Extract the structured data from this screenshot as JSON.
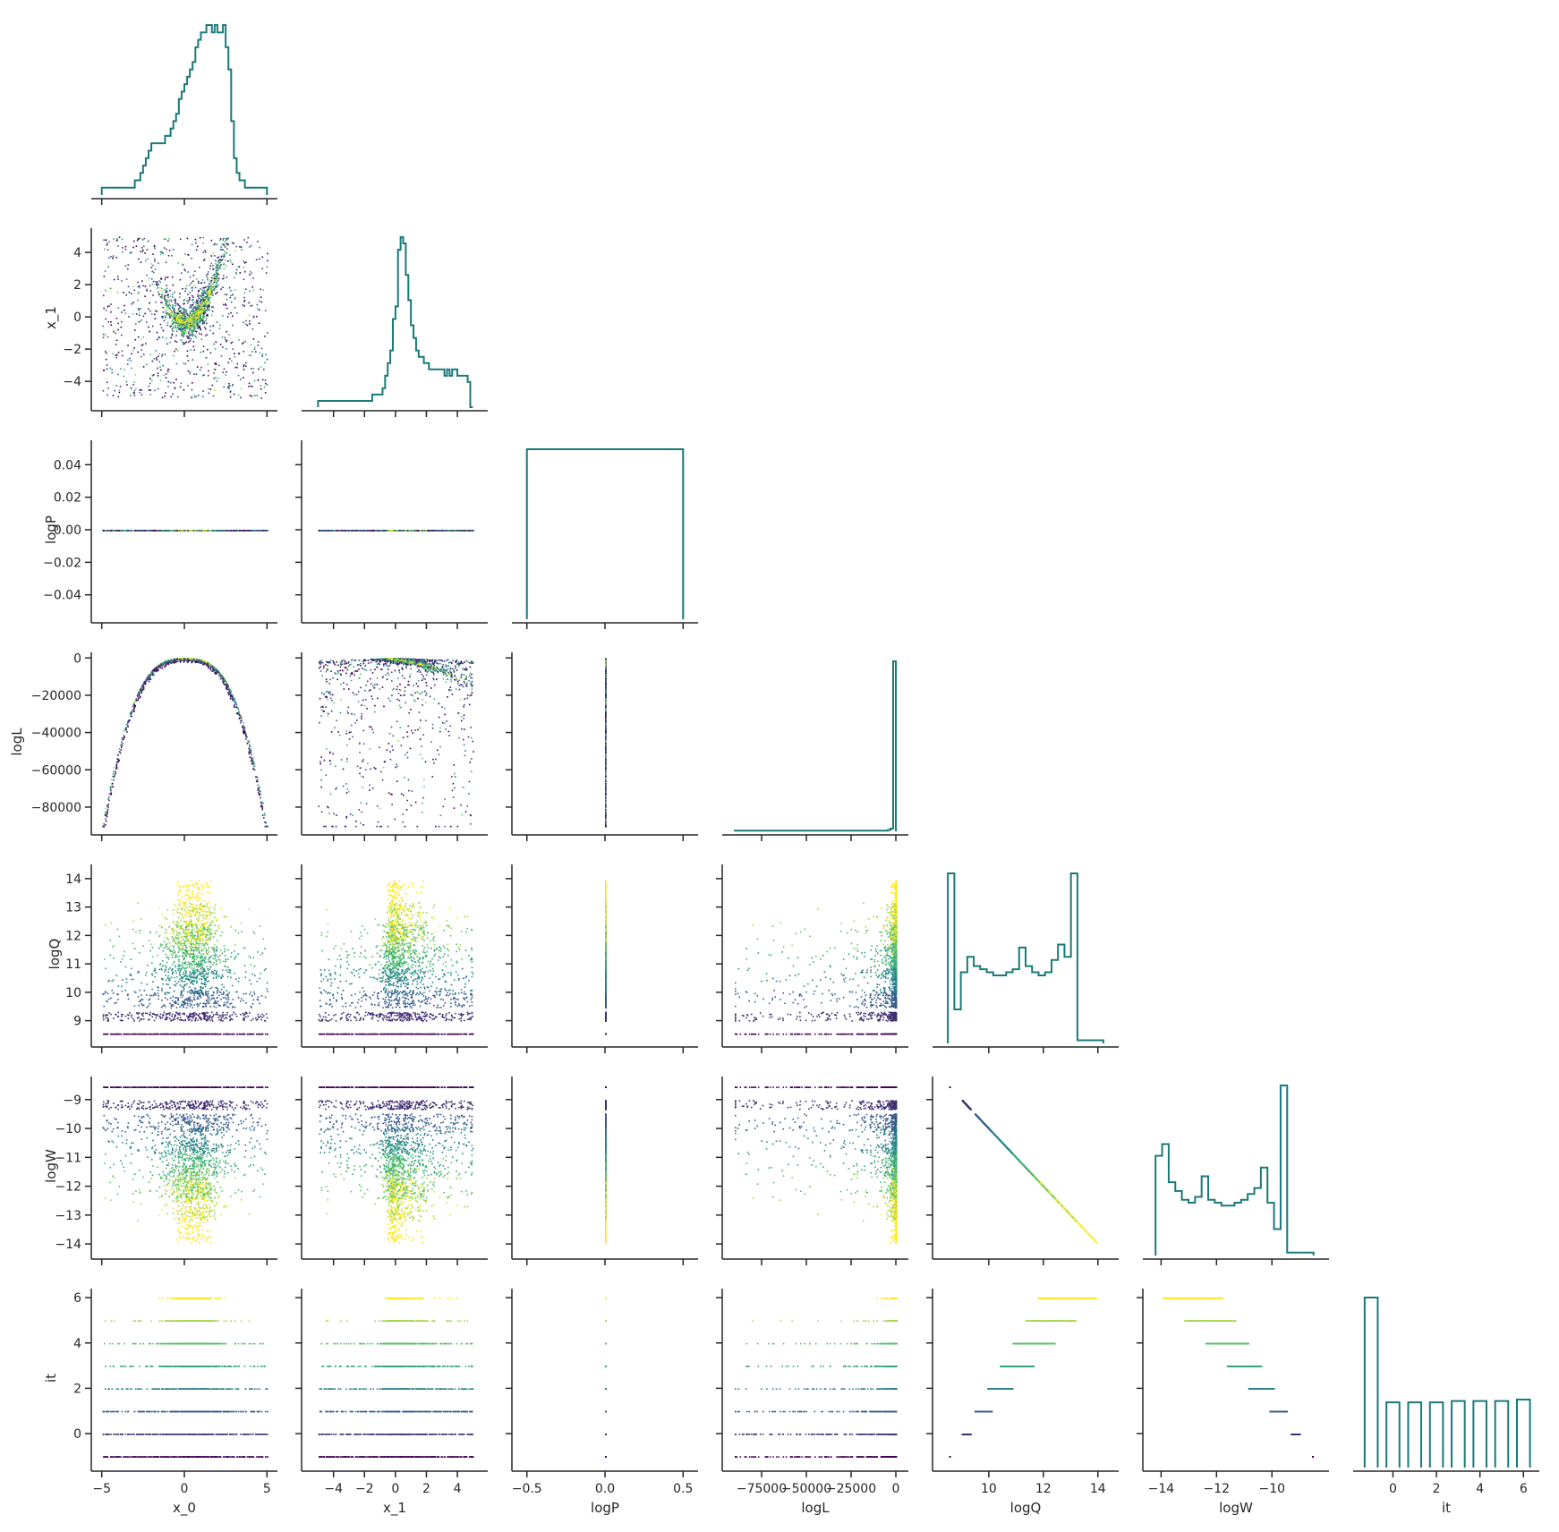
{
  "chart_data": {
    "type": "pairplot",
    "title": "",
    "colormap": [
      "#440154",
      "#3b528b",
      "#21918c",
      "#5ec962",
      "#fde725"
    ],
    "hist_color": "#1a7a7a",
    "variables": [
      {
        "name": "x_0",
        "label": "x_0",
        "range": [
          -5.2,
          5.2
        ],
        "ticks": [
          -5,
          0,
          5
        ],
        "ticklabels": [
          "−5",
          "0",
          "5"
        ]
      },
      {
        "name": "x_1",
        "label": "x_1",
        "range": [
          -5.6,
          5.5
        ],
        "ticks": [
          -4,
          -2,
          0,
          2,
          4
        ],
        "ticklabels": [
          "−4",
          "−2",
          "0",
          "2",
          "4"
        ]
      },
      {
        "name": "logP",
        "label": "logP",
        "range": [
          -0.55,
          0.55
        ],
        "ticks": [
          -0.04,
          -0.02,
          0.0,
          0.02,
          0.04
        ],
        "ticklabels": [
          "−0.04",
          "−0.02",
          "0.00",
          "0.02",
          "0.04"
        ],
        "xticks": [
          -0.5,
          0.0,
          0.5
        ],
        "xticklabels": [
          "−0.5",
          "0.0",
          "0.5"
        ],
        "yrange": [
          -0.055,
          0.055
        ]
      },
      {
        "name": "logL",
        "label": "logL",
        "range": [
          -93000,
          3000
        ],
        "ticks": [
          -80000,
          -60000,
          -40000,
          -20000,
          0
        ],
        "ticklabels": [
          "−80000",
          "−60000",
          "−40000",
          "−20000",
          "0"
        ],
        "xticks": [
          -75000,
          -50000,
          -25000,
          0
        ],
        "xticklabels": [
          "−75000",
          "−50000",
          "−25000",
          "0"
        ]
      },
      {
        "name": "logQ",
        "label": "logQ",
        "range": [
          8.2,
          14.5
        ],
        "ticks": [
          9,
          10,
          11,
          12,
          13,
          14
        ],
        "ticklabels": [
          "9",
          "10",
          "11",
          "12",
          "13",
          "14"
        ],
        "xticks": [
          10,
          12,
          14
        ],
        "xticklabels": [
          "10",
          "12",
          "14"
        ]
      },
      {
        "name": "logW",
        "label": "logW",
        "range": [
          -14.4,
          -8.2
        ],
        "ticks": [
          -14,
          -13,
          -12,
          -11,
          -10,
          -9
        ],
        "ticklabels": [
          "−14",
          "−13",
          "−12",
          "−11",
          "−10",
          "−9"
        ],
        "xticks": [
          -14,
          -12,
          -10
        ],
        "xticklabels": [
          "−14",
          "−12",
          "−10"
        ]
      },
      {
        "name": "it",
        "label": "it",
        "range": [
          -1.5,
          6.4
        ],
        "ticks": [
          0,
          2,
          4,
          6
        ],
        "ticklabels": [
          "0",
          "2",
          "4",
          "6"
        ],
        "xticks": [
          0,
          2,
          4,
          6
        ],
        "xticklabels": [
          "0",
          "2",
          "4",
          "6"
        ]
      }
    ],
    "histograms": {
      "x_0": {
        "edges_range": [
          -5,
          5
        ],
        "bins": 60,
        "counts": [
          1,
          1,
          1,
          1,
          1,
          1,
          1,
          1,
          1,
          1,
          1,
          1,
          2,
          2,
          3,
          4,
          5,
          6,
          7,
          7,
          7,
          7,
          7,
          8,
          8,
          9,
          10,
          11,
          13,
          14,
          15,
          16,
          17,
          18,
          20,
          21,
          22,
          22,
          23,
          23,
          22,
          23,
          22,
          22,
          23,
          20,
          17,
          10,
          5,
          3,
          2,
          2,
          1,
          1,
          1,
          1,
          1,
          1,
          1,
          1
        ]
      },
      "x_1": {
        "edges_range": [
          -5,
          5
        ],
        "bins": 60,
        "counts": [
          1,
          1,
          1,
          1,
          1,
          1,
          1,
          1,
          1,
          1,
          1,
          1,
          1,
          1,
          1,
          1,
          1,
          1,
          1,
          1,
          1,
          2,
          2,
          2,
          2,
          3,
          5,
          7,
          9,
          14,
          16,
          25,
          27,
          26,
          21,
          17,
          13,
          11,
          9,
          8,
          8,
          7,
          7,
          6,
          6,
          6,
          6,
          6,
          6,
          5,
          6,
          5,
          6,
          6,
          5,
          5,
          5,
          5,
          4,
          0
        ]
      },
      "logP": {
        "edges": [
          -0.5,
          0.5
        ],
        "counts": [
          1
        ]
      },
      "logL": {
        "edges_range": [
          -90000,
          0
        ],
        "bins": 60,
        "counts": [
          1,
          1,
          1,
          1,
          1,
          1,
          1,
          1,
          1,
          1,
          1,
          1,
          1,
          1,
          1,
          1,
          1,
          1,
          1,
          1,
          1,
          1,
          1,
          1,
          1,
          1,
          1,
          1,
          1,
          1,
          1,
          1,
          1,
          1,
          1,
          1,
          1,
          1,
          1,
          1,
          1,
          1,
          1,
          1,
          1,
          1,
          1,
          1,
          1,
          1,
          1,
          1,
          1,
          1,
          1,
          1,
          1,
          2,
          4,
          250
        ]
      },
      "logQ": {
        "edges_range": [
          8.5,
          14.2
        ],
        "bins": 24,
        "counts": [
          55,
          11,
          23,
          28,
          25,
          24,
          23,
          22,
          22,
          23,
          24,
          31,
          25,
          23,
          22,
          23,
          27,
          32,
          28,
          55,
          1,
          1,
          1,
          1
        ]
      },
      "logW": {
        "edges_range": [
          -14.2,
          -8.5
        ],
        "bins": 24,
        "counts": [
          34,
          38,
          25,
          22,
          19,
          18,
          20,
          27,
          19,
          18,
          17,
          17,
          18,
          19,
          21,
          23,
          30,
          18,
          9,
          58,
          1,
          1,
          1,
          1
        ]
      },
      "it": {
        "categories": [
          -1,
          0,
          1,
          2,
          3,
          4,
          5,
          6
        ],
        "counts": [
          6,
          2.3,
          2.3,
          2.3,
          2.35,
          2.35,
          2.35,
          2.4
        ]
      }
    },
    "scatter_description_values": {
      "it_levels": [
        -1,
        0,
        1,
        2,
        3,
        4,
        5,
        6
      ],
      "logQ_plus_logW_constant": 0
    }
  }
}
